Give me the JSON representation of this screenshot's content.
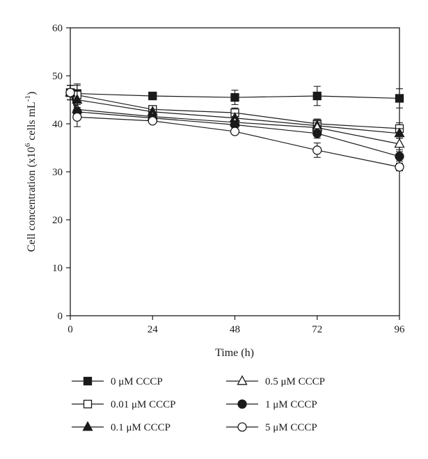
{
  "chart_data": {
    "type": "line",
    "title": "",
    "xlabel": "Time (h)",
    "ylabel": {
      "prefix": "Cell concentration (x10",
      "exp1": "6",
      "mid": " cells mL",
      "exp2": "-1",
      "suffix": ")"
    },
    "xlim": [
      0,
      96
    ],
    "ylim": [
      0,
      60
    ],
    "xticks": [
      0,
      24,
      48,
      72,
      96
    ],
    "yticks": [
      0,
      10,
      20,
      30,
      40,
      50,
      60
    ],
    "grid": false,
    "legend_position": "bottom",
    "x": [
      0,
      2,
      24,
      48,
      72,
      96
    ],
    "series": [
      {
        "name": "0 μM CCCP",
        "marker": "square",
        "fill": "#1a1a1a",
        "values": [
          46.5,
          46.3,
          45.8,
          45.5,
          45.8,
          45.3
        ],
        "errors": [
          1.5,
          2.0,
          0.5,
          1.5,
          2.0,
          2.0
        ]
      },
      {
        "name": "0.01 μM CCCP",
        "marker": "square",
        "fill": "#ffffff",
        "values": [
          46.5,
          46.0,
          43.0,
          42.3,
          40.0,
          39.0
        ],
        "errors": [
          1.5,
          2.0,
          0.5,
          1.0,
          1.0,
          1.2
        ]
      },
      {
        "name": "0.1 μM CCCP",
        "marker": "triangle",
        "fill": "#1a1a1a",
        "values": [
          46.5,
          45.0,
          42.5,
          41.2,
          39.6,
          38.0
        ],
        "errors": [
          1.5,
          2.0,
          0.5,
          1.0,
          1.0,
          1.0
        ]
      },
      {
        "name": "0.5 μM CCCP",
        "marker": "triangle",
        "fill": "#ffffff",
        "values": [
          46.5,
          43.0,
          41.5,
          40.3,
          39.2,
          35.8
        ],
        "errors": [
          1.5,
          1.5,
          0.5,
          1.0,
          1.0,
          1.2
        ]
      },
      {
        "name": "1 μM CCCP",
        "marker": "circle",
        "fill": "#1a1a1a",
        "values": [
          46.5,
          42.5,
          41.2,
          39.8,
          38.0,
          33.2
        ],
        "errors": [
          1.5,
          1.5,
          0.5,
          0.8,
          1.0,
          1.0
        ]
      },
      {
        "name": "5 μM CCCP",
        "marker": "circle",
        "fill": "#ffffff",
        "values": [
          46.5,
          41.4,
          40.6,
          38.4,
          34.5,
          31.0
        ],
        "errors": [
          1.5,
          2.0,
          0.5,
          0.6,
          1.5,
          0.8
        ]
      }
    ]
  }
}
